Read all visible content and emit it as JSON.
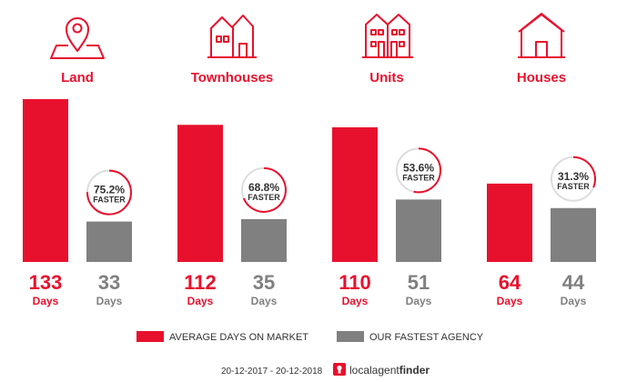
{
  "chart_data": {
    "type": "bar",
    "categories": [
      "Land",
      "Townhouses",
      "Units",
      "Houses"
    ],
    "series": [
      {
        "name": "AVERAGE DAYS ON MARKET",
        "values": [
          133,
          112,
          110,
          64
        ]
      },
      {
        "name": "OUR FASTEST AGENCY",
        "values": [
          33,
          35,
          51,
          44
        ]
      }
    ],
    "faster_percent": [
      "75.2%",
      "68.8%",
      "53.6%",
      "31.3%"
    ],
    "faster_fraction": [
      0.752,
      0.688,
      0.536,
      0.313
    ],
    "faster_label": "FASTER",
    "unit_label": "Days",
    "ylim": [
      0,
      133
    ],
    "legend_position": "bottom",
    "grid": false
  },
  "icons": [
    "location-pin-icon",
    "townhouse-icon",
    "units-building-icon",
    "house-icon"
  ],
  "colors": {
    "primary": "#e8112d",
    "secondary": "#808080",
    "ring_track": "#dddddd"
  },
  "footer": {
    "date_range": "20-12-2017 - 20-12-2018",
    "brand_part1": "localagent",
    "brand_part2": "finder"
  }
}
